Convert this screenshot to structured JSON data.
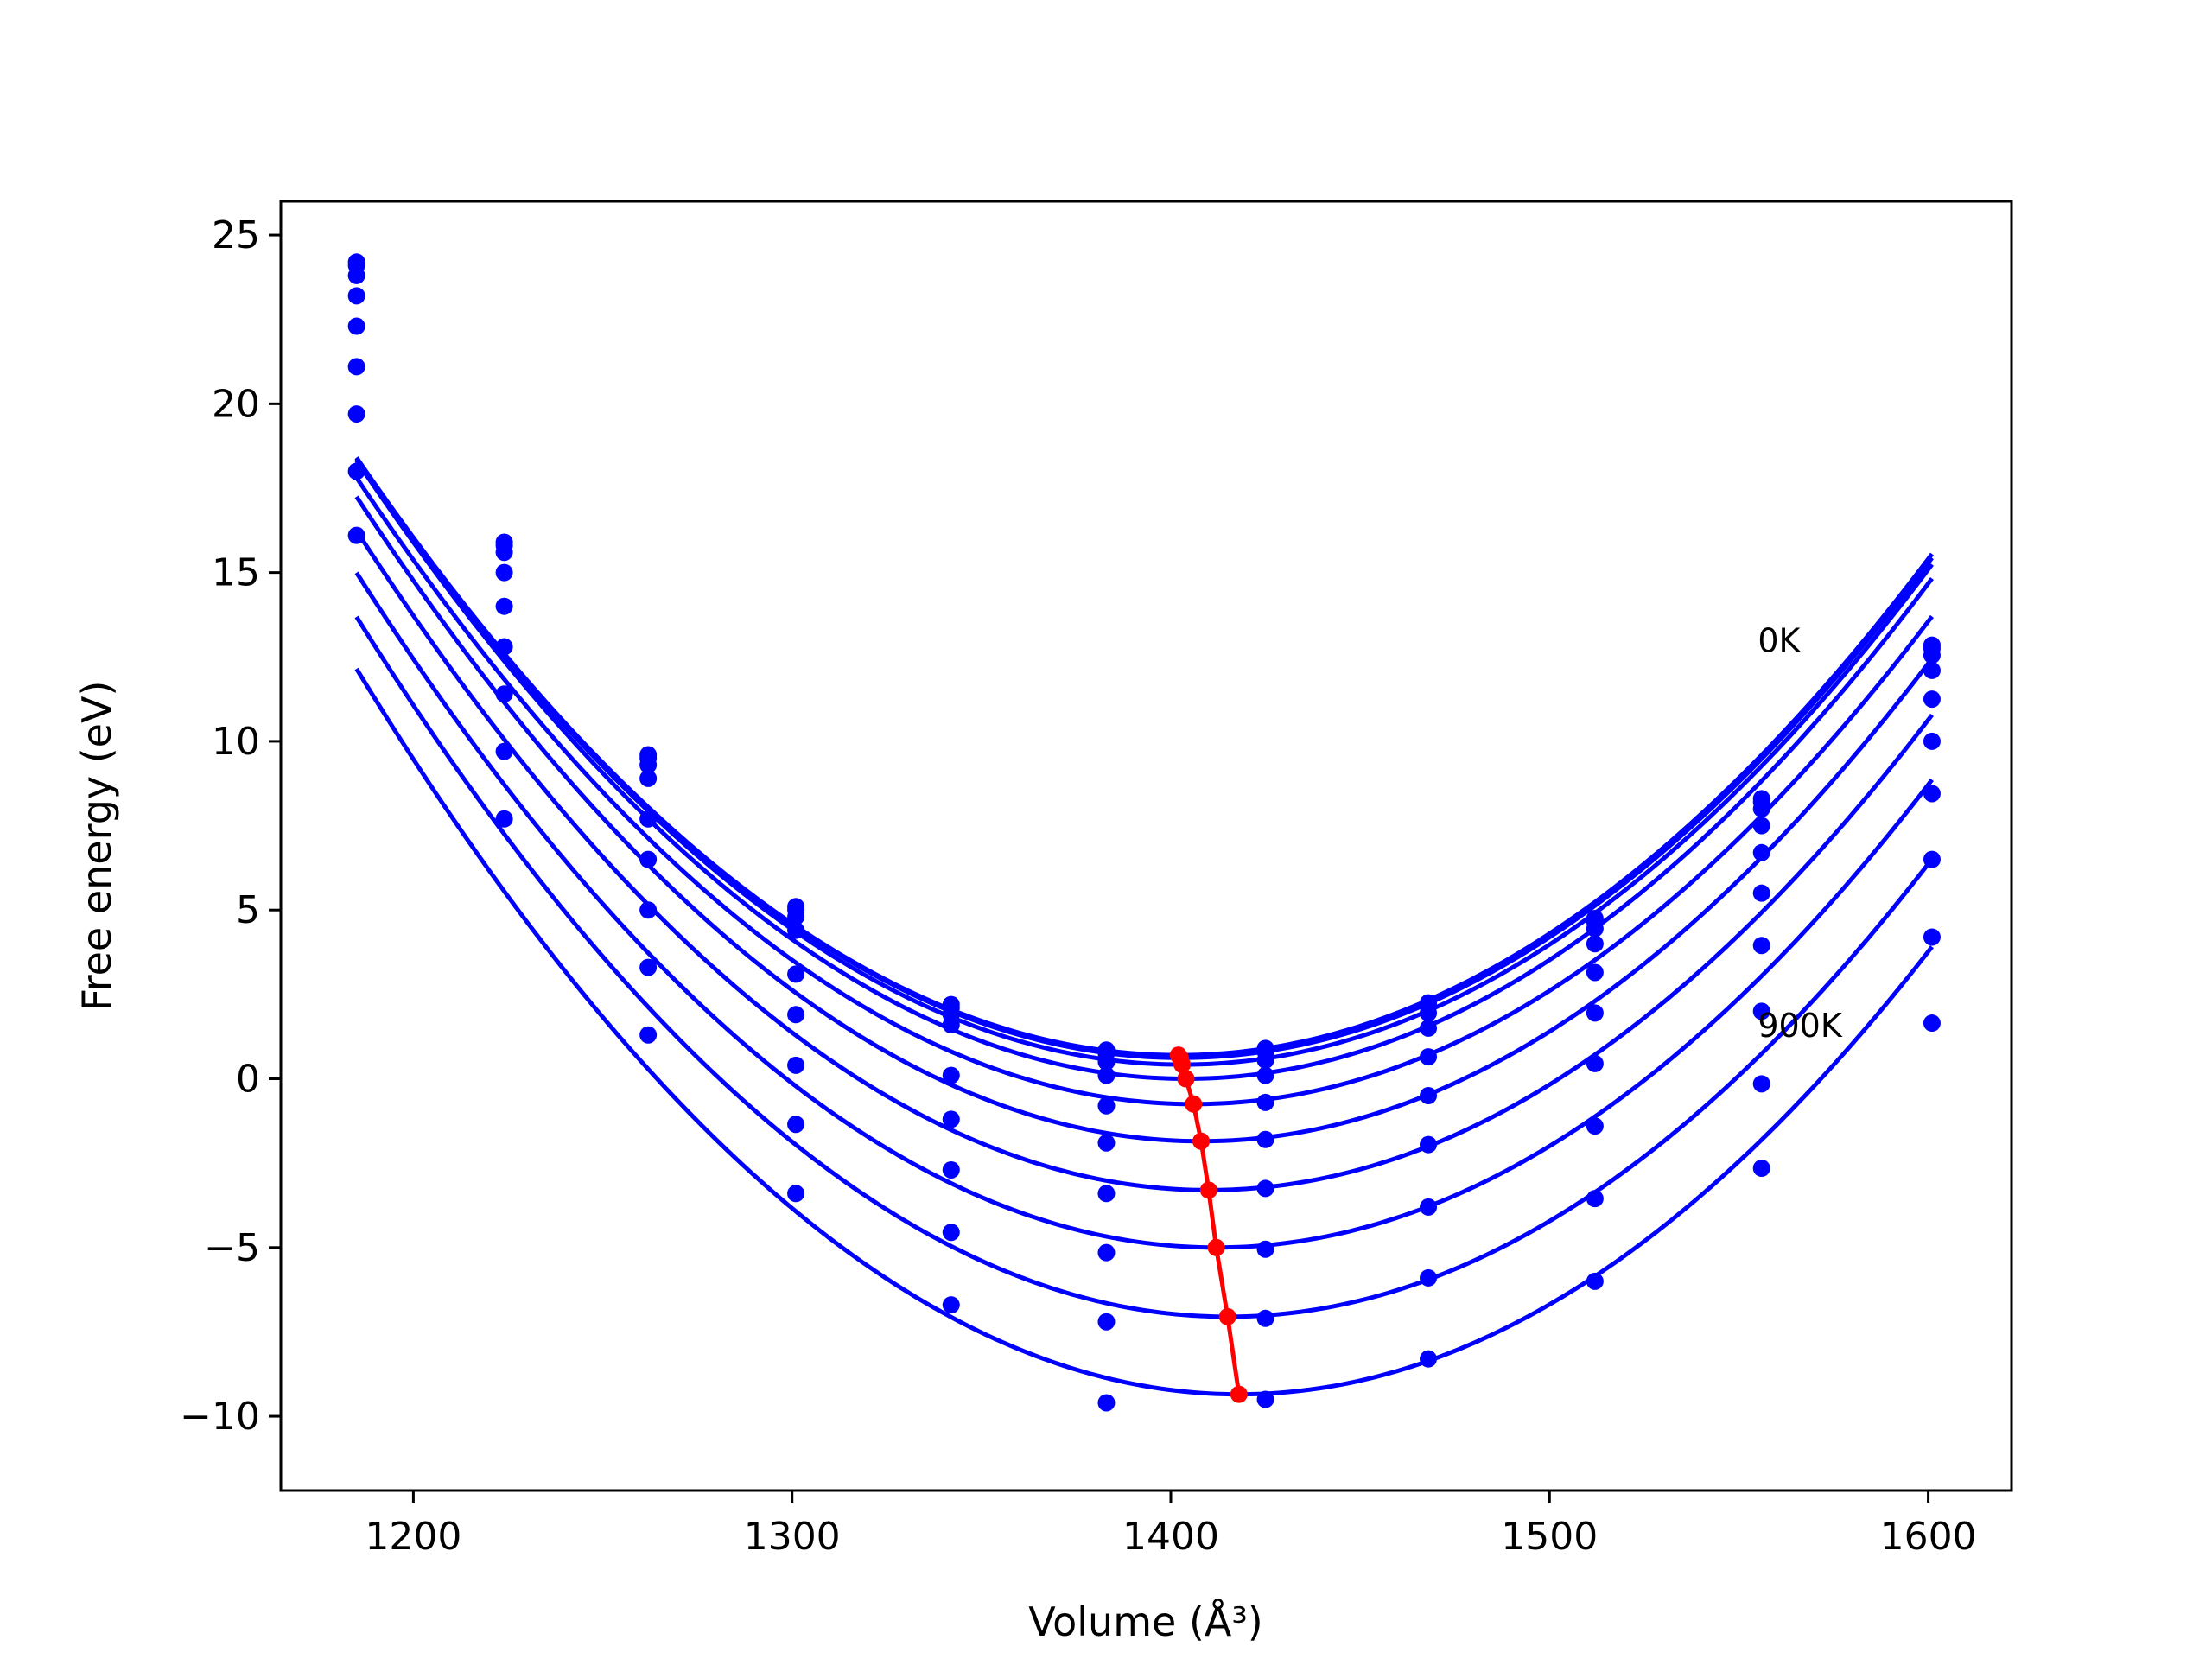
{
  "chart_data": {
    "type": "line",
    "title": "",
    "xlabel": "Volume (Å³)",
    "ylabel": "Free energy (eV)",
    "xlim": [
      1165,
      1622
    ],
    "ylim": [
      -12.2,
      26.0
    ],
    "x_ticks": [
      1200,
      1300,
      1400,
      1500,
      1600
    ],
    "y_ticks": [
      -10,
      -5,
      0,
      5,
      10,
      15,
      20,
      25
    ],
    "x_tick_labels": [
      "1200",
      "1300",
      "1400",
      "1500",
      "1600"
    ],
    "y_tick_labels": [
      "−10",
      "−5",
      "0",
      "5",
      "10",
      "15",
      "20",
      "25"
    ],
    "grid": false,
    "annotations": [
      {
        "text": "0K",
        "x": 1555,
        "y": 13.0
      },
      {
        "text": "900K",
        "x": 1555,
        "y": 1.6
      }
    ],
    "colors": {
      "fit": "#0000ff",
      "points": "#0000ff",
      "minima": "#ff0000"
    },
    "volumes": [
      1185,
      1224,
      1262,
      1301,
      1342,
      1383,
      1425,
      1468,
      1512,
      1556,
      1601
    ],
    "series": [
      {
        "points": [
          24.2,
          15.9,
          9.6,
          5.1,
          2.2,
          0.85,
          0.9,
          2.25,
          4.75,
          8.3,
          12.85
        ],
        "fit": {
          "a": 0.000375,
          "vmin": 1402,
          "emin": 0.7
        }
      },
      {
        "points": [
          24.1,
          15.8,
          9.5,
          5.0,
          2.1,
          0.75,
          0.8,
          2.15,
          4.65,
          8.2,
          12.75
        ],
        "fit": {
          "a": 0.000376,
          "vmin": 1402.5,
          "emin": 0.62
        }
      },
      {
        "points": [
          23.8,
          15.6,
          9.3,
          4.8,
          1.9,
          0.5,
          0.55,
          1.95,
          4.45,
          8.0,
          12.55
        ],
        "fit": {
          "a": 0.000378,
          "vmin": 1403,
          "emin": 0.42
        }
      },
      {
        "points": [
          23.2,
          15.0,
          8.9,
          4.4,
          1.6,
          0.1,
          0.1,
          1.5,
          4.0,
          7.5,
          12.1
        ],
        "fit": {
          "a": 0.000382,
          "vmin": 1404,
          "emin": 0.0
        }
      },
      {
        "points": [
          22.3,
          14.0,
          7.7,
          3.1,
          0.1,
          -0.8,
          -0.7,
          0.65,
          3.15,
          6.7,
          11.25
        ],
        "fit": {
          "a": 0.00038,
          "vmin": 1406,
          "emin": -0.75
        }
      },
      {
        "points": [
          21.1,
          12.8,
          6.5,
          1.9,
          -1.2,
          -1.9,
          -1.8,
          -0.5,
          1.95,
          5.5,
          10.0
        ],
        "fit": {
          "a": 0.000384,
          "vmin": 1408,
          "emin": -1.85
        }
      },
      {
        "points": [
          19.7,
          11.4,
          5.0,
          0.4,
          -2.7,
          -3.4,
          -3.25,
          -1.95,
          0.45,
          3.95,
          8.45
        ],
        "fit": {
          "a": 0.000386,
          "vmin": 1410,
          "emin": -3.3
        }
      },
      {
        "points": [
          18.0,
          9.7,
          3.3,
          -1.35,
          -4.55,
          -5.15,
          -5.05,
          -3.8,
          -1.4,
          2.0,
          6.5
        ],
        "fit": {
          "a": 0.000388,
          "vmin": 1412,
          "emin": -5.0
        }
      },
      {
        "points": [
          16.1,
          7.7,
          1.3,
          -3.4,
          -6.7,
          -7.2,
          -7.1,
          -5.9,
          -3.55,
          -0.15,
          4.2
        ],
        "fit": {
          "a": 0.000392,
          "vmin": 1415,
          "emin": -7.05
        }
      },
      {
        "points": [
          null,
          null,
          null,
          null,
          null,
          -9.6,
          -9.5,
          -8.3,
          -6.0,
          -2.65,
          1.65
        ],
        "fit": {
          "a": 0.000396,
          "vmin": 1418,
          "emin": -9.35
        }
      }
    ],
    "minima_line": {
      "x": [
        1402,
        1402.5,
        1403,
        1404,
        1406,
        1408,
        1410,
        1412,
        1415,
        1418
      ],
      "y": [
        0.7,
        0.62,
        0.42,
        0.0,
        -0.75,
        -1.85,
        -3.3,
        -5.0,
        -7.05,
        -9.35
      ]
    }
  }
}
